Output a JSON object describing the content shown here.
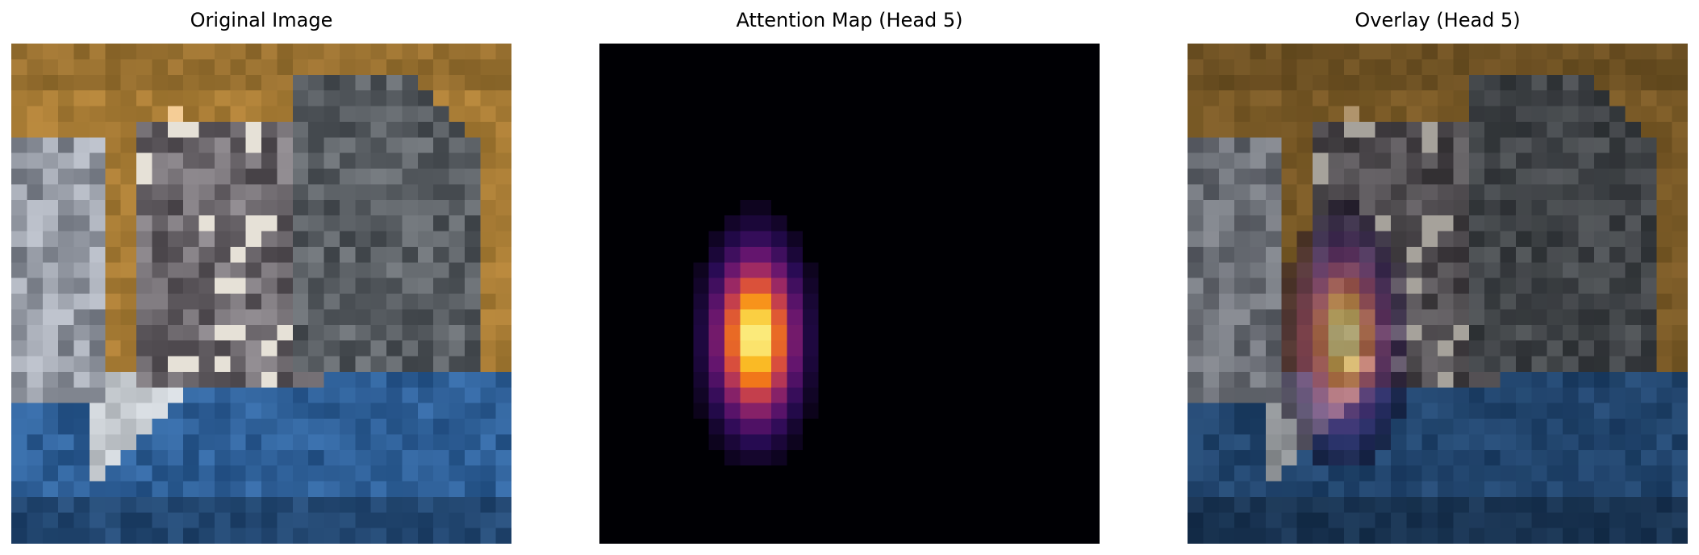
{
  "panels": {
    "original": {
      "title": "Original Image"
    },
    "attention": {
      "title": "Attention Map (Head 5)"
    },
    "overlay": {
      "title": "Overlay (Head 5)"
    }
  },
  "colors": {
    "background": "#ffffff",
    "sky": "#a87c35",
    "water": "#2e5f97",
    "colormap": "inferno"
  }
}
